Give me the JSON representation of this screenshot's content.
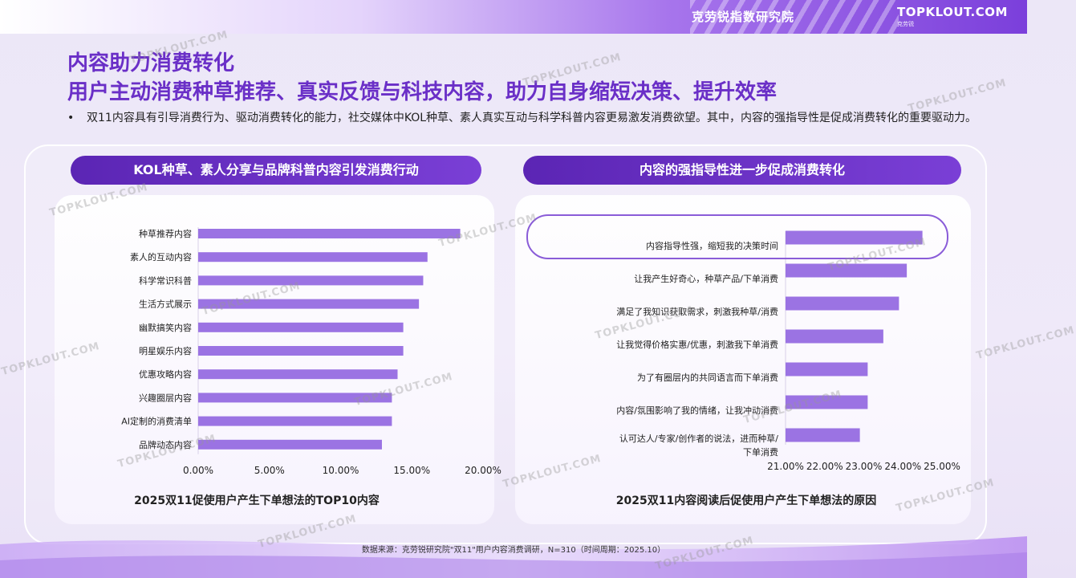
{
  "header": {
    "org_name": "克劳锐指数研究院",
    "logo_main": "TOPKLOUT.COM",
    "logo_sub": "克劳锐"
  },
  "title_line1": "内容助力消费转化",
  "title_line2": "用户主动消费种草推荐、真实反馈与科技内容，助力自身缩短决策、提升效率",
  "bullet_text": "双11内容具有引导消费行为、驱动消费转化的能力，社交媒体中KOL种草、素人真实互动与科学科普内容更易激发消费欲望。其中，内容的强指导性是促成消费转化的重要驱动力。",
  "left_panel": {
    "header": "KOL种草、素人分享与品牌科普内容引发消费行动",
    "caption": "2025双11促使用户产生下单想法的TOP10内容"
  },
  "right_panel": {
    "header": "内容的强指导性进一步促成消费转化",
    "caption": "2025双11内容阅读后促使用户产生下单想法的原因"
  },
  "source": "数据来源：克劳锐研究院\"双11\"用户内容消费调研，N=310（时间周期：2025.10）",
  "watermark": "TOPKLOUT.COM",
  "colors": {
    "bar": "#9b73e3",
    "accent": "#6a2fc7",
    "pill": "#5b25b4"
  },
  "chart_data": [
    {
      "type": "bar",
      "orientation": "horizontal",
      "categories": [
        "种草推荐内容",
        "素人的互动内容",
        "科学常识科普",
        "生活方式展示",
        "幽默搞笑内容",
        "明星娱乐内容",
        "优惠攻略内容",
        "兴趣圈层内容",
        "AI定制的消费清单",
        "品牌动态内容"
      ],
      "values": [
        18.4,
        16.1,
        15.8,
        15.5,
        14.4,
        14.4,
        14.0,
        13.6,
        13.6,
        12.9
      ],
      "xlim": [
        0,
        20
      ],
      "x_ticks": [
        "0.00%",
        "5.00%",
        "10.00%",
        "15.00%",
        "20.00%"
      ],
      "title": "2025双11促使用户产生下单想法的TOP10内容",
      "highlight_index": null
    },
    {
      "type": "bar",
      "orientation": "horizontal",
      "categories": [
        "内容指导性强，缩短我的决策时间",
        "让我产生好奇心，种草产品/下单消费",
        "满足了我知识获取需求，刺激我种草/消费",
        "让我觉得价格实惠/优惠，刺激我下单消费",
        "为了有圈层内的共同语言而下单消费",
        "内容/氛围影响了我的情绪，让我冲动消费",
        "认可达人/专家/创作者的说法，进而种草/下单消费"
      ],
      "values": [
        24.5,
        24.1,
        23.9,
        23.5,
        23.1,
        23.1,
        22.9
      ],
      "xlim": [
        21,
        25
      ],
      "x_ticks": [
        "21.00%",
        "22.00%",
        "23.00%",
        "24.00%",
        "25.00%"
      ],
      "title": "2025双11内容阅读后促使用户产生下单想法的原因",
      "highlight_index": 0
    }
  ]
}
